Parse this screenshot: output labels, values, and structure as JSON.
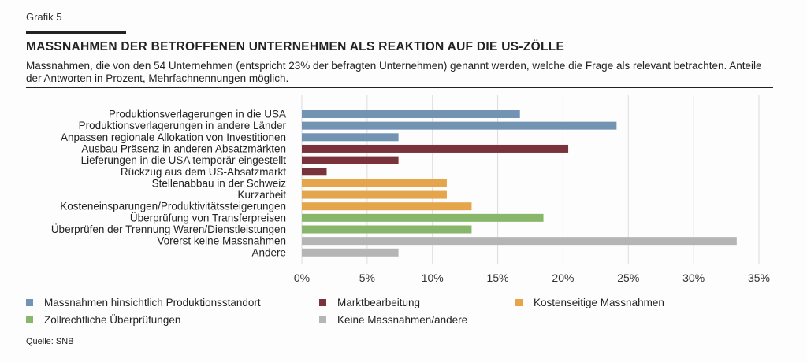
{
  "header": {
    "label": "Grafik 5",
    "title": "MASSNAHMEN DER BETROFFENEN UNTERNEHMEN ALS REAKTION AUF DIE US-ZÖLLE",
    "subtitle": "Massnahmen, die von den 54 Unternehmen (entspricht 23% der befragten Unternehmen) genannt werden, welche die Frage als relevant betrachten. Anteile der Antworten in Prozent, Mehrfachnennungen möglich."
  },
  "source": "Quelle: SNB",
  "chart_data": {
    "type": "bar",
    "orientation": "horizontal",
    "categories": [
      "Produktionsverlagerungen in die USA",
      "Produktionsverlagerungen in andere Länder",
      "Anpassen regionale Allokation von Investitionen",
      "Ausbau Präsenz in anderen Absatzmärkten",
      "Lieferungen in die USA temporär eingestellt",
      "Rückzug aus dem US-Absatzmarkt",
      "Stellenabbau in der Schweiz",
      "Kurzarbeit",
      "Kosteneinsparungen/Produktivitätssteigerungen",
      "Überprüfung von Transferpreisen",
      "Überprüfen der Trennung Waren/Dienstleistungen",
      "Vorerst keine Massnahmen",
      "Andere"
    ],
    "values": [
      16.7,
      24.1,
      7.4,
      20.4,
      7.4,
      1.9,
      11.1,
      11.1,
      13.0,
      18.5,
      13.0,
      33.3,
      7.4
    ],
    "groups": [
      0,
      0,
      0,
      1,
      1,
      1,
      2,
      2,
      2,
      3,
      3,
      4,
      4
    ],
    "legend": [
      {
        "name": "Massnahmen hinsichtlich Produktionsstandort",
        "color": "#7393b3"
      },
      {
        "name": "Marktbearbeitung",
        "color": "#7a333a"
      },
      {
        "name": "Kostenseitige Massnahmen",
        "color": "#e5a54b"
      },
      {
        "name": "Zollrechtliche Überprüfungen",
        "color": "#88b66a"
      },
      {
        "name": "Keine Massnahmen/andere",
        "color": "#b5b5b5"
      }
    ],
    "xlim": [
      0,
      35
    ],
    "xticks": [
      0,
      5,
      10,
      15,
      20,
      25,
      30,
      35
    ],
    "xtick_labels": [
      "0%",
      "5%",
      "10%",
      "15%",
      "20%",
      "25%",
      "30%",
      "35%"
    ],
    "grid": true,
    "legend_position": "bottom"
  }
}
